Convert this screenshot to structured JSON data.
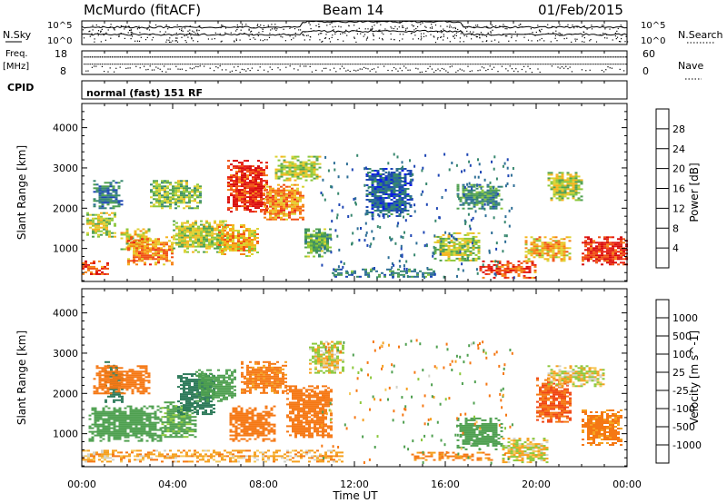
{
  "header": {
    "site": "McMurdo (fitACF)",
    "beam": "Beam 14",
    "date": "01/Feb/2015"
  },
  "nsky_panel": {
    "left_label": "N.Sky",
    "right_label": "N.Search",
    "left_ticks": [
      "10^5",
      "10^0"
    ],
    "right_ticks": [
      "10^5",
      "10^0"
    ]
  },
  "freq_panel": {
    "left_label_1": "Freq.",
    "left_label_2": "[MHz]",
    "right_label": "Nave",
    "left_ticks": [
      "18",
      "8"
    ],
    "right_ticks": [
      "60",
      "0"
    ]
  },
  "cpid": {
    "label": "CPID",
    "mode": "normal (fast) 151 RF"
  },
  "colors": {
    "power": [
      "#0a1ee6",
      "#1e46b4",
      "#2d6e96",
      "#37876e",
      "#4fa050",
      "#8cc83c",
      "#dcd232",
      "#f5b41e",
      "#f58214",
      "#f05014",
      "#e61e14",
      "#d70a0a"
    ],
    "velocity_neg": [
      "#e61414",
      "#f04614",
      "#f57814",
      "#f5a01e",
      "#f5c85a"
    ],
    "velocity_pos": [
      "#d2d2c8",
      "#8cc83c",
      "#4fa050",
      "#2d7a5a",
      "#1e46b4"
    ]
  },
  "chart_data": [
    {
      "type": "heatmap",
      "name": "power",
      "ylabel": "Slant Range [km]",
      "ylim": [
        180,
        4600
      ],
      "xlim_hours": [
        0,
        24
      ],
      "yticks": [
        "1000",
        "2000",
        "3000",
        "4000"
      ],
      "colorbar_label": "Power [dB]",
      "colorbar_ticks": [
        "4",
        "8",
        "12",
        "16",
        "20",
        "24",
        "28"
      ],
      "colorbar_range": [
        0,
        32
      ],
      "regions": [
        {
          "x0": 0.0,
          "x1": 1.2,
          "y0": 350,
          "y1": 700,
          "v": 26
        },
        {
          "x0": 0.2,
          "x1": 1.5,
          "y0": 1300,
          "y1": 1900,
          "v": 16
        },
        {
          "x0": 0.5,
          "x1": 1.8,
          "y0": 2000,
          "y1": 2700,
          "v": 8
        },
        {
          "x0": 1.7,
          "x1": 3.0,
          "y0": 1000,
          "y1": 1500,
          "v": 18
        },
        {
          "x0": 2.0,
          "x1": 4.0,
          "y0": 600,
          "y1": 1300,
          "v": 22
        },
        {
          "x0": 3.0,
          "x1": 5.2,
          "y0": 2000,
          "y1": 2700,
          "v": 14
        },
        {
          "x0": 4.0,
          "x1": 6.4,
          "y0": 900,
          "y1": 1700,
          "v": 16
        },
        {
          "x0": 6.4,
          "x1": 8.1,
          "y0": 1900,
          "y1": 3200,
          "v": 28
        },
        {
          "x0": 6.0,
          "x1": 7.8,
          "y0": 800,
          "y1": 1600,
          "v": 20
        },
        {
          "x0": 8.0,
          "x1": 9.8,
          "y0": 1700,
          "y1": 2600,
          "v": 22
        },
        {
          "x0": 8.5,
          "x1": 10.5,
          "y0": 2700,
          "y1": 3300,
          "v": 16
        },
        {
          "x0": 9.8,
          "x1": 11.0,
          "y0": 800,
          "y1": 1500,
          "v": 12
        },
        {
          "x0": 11.0,
          "x1": 15.5,
          "y0": 300,
          "y1": 500,
          "v": 10
        },
        {
          "x0": 12.5,
          "x1": 14.5,
          "y0": 1800,
          "y1": 3000,
          "v": 6
        },
        {
          "x0": 15.5,
          "x1": 17.5,
          "y0": 700,
          "y1": 1400,
          "v": 16
        },
        {
          "x0": 16.5,
          "x1": 18.5,
          "y0": 2000,
          "y1": 2600,
          "v": 10
        },
        {
          "x0": 17.5,
          "x1": 20.0,
          "y0": 250,
          "y1": 700,
          "v": 26
        },
        {
          "x0": 19.5,
          "x1": 21.5,
          "y0": 700,
          "y1": 1300,
          "v": 20
        },
        {
          "x0": 20.5,
          "x1": 22.0,
          "y0": 2200,
          "y1": 2900,
          "v": 16
        },
        {
          "x0": 22.0,
          "x1": 24.0,
          "y0": 600,
          "y1": 1300,
          "v": 28
        }
      ]
    },
    {
      "type": "heatmap",
      "name": "velocity",
      "ylabel": "Slant Range [km]",
      "xlabel": "Time UT",
      "ylim": [
        180,
        4600
      ],
      "xlim_hours": [
        0,
        24
      ],
      "yticks": [
        "1000",
        "2000",
        "3000",
        "4000"
      ],
      "xticks": [
        "00:00",
        "04:00",
        "08:00",
        "12:00",
        "16:00",
        "20:00",
        "00:00"
      ],
      "colorbar_label": "Velocity [m s^-1]",
      "colorbar_ticks": [
        "1000",
        "500",
        "100",
        "25",
        "-25",
        "-100",
        "-500",
        "-1000"
      ],
      "regions": [
        {
          "x0": 0.3,
          "x1": 3.5,
          "y0": 800,
          "y1": 1700,
          "v": 300
        },
        {
          "x0": 3.5,
          "x1": 5.0,
          "y0": 900,
          "y1": 1800,
          "v": 150
        },
        {
          "x0": 1.0,
          "x1": 1.8,
          "y0": 1800,
          "y1": 2800,
          "v": 800
        },
        {
          "x0": 0.5,
          "x1": 3.0,
          "y0": 2000,
          "y1": 2700,
          "v": -300
        },
        {
          "x0": 4.2,
          "x1": 5.8,
          "y0": 1500,
          "y1": 2500,
          "v": 600
        },
        {
          "x0": 5.0,
          "x1": 6.8,
          "y0": 1800,
          "y1": 2600,
          "v": 200
        },
        {
          "x0": 6.5,
          "x1": 8.5,
          "y0": 800,
          "y1": 1700,
          "v": -300
        },
        {
          "x0": 7.0,
          "x1": 9.0,
          "y0": 2000,
          "y1": 2800,
          "v": -150
        },
        {
          "x0": 9.0,
          "x1": 11.0,
          "y0": 900,
          "y1": 2200,
          "v": -400
        },
        {
          "x0": 10.0,
          "x1": 11.5,
          "y0": 2500,
          "y1": 3300,
          "v": 10
        },
        {
          "x0": 0.0,
          "x1": 11.5,
          "y0": 300,
          "y1": 600,
          "v": -60
        },
        {
          "x0": 14.5,
          "x1": 18.0,
          "y0": 350,
          "y1": 550,
          "v": -120
        },
        {
          "x0": 16.5,
          "x1": 18.5,
          "y0": 600,
          "y1": 1400,
          "v": 300
        },
        {
          "x0": 18.5,
          "x1": 20.5,
          "y0": 300,
          "y1": 900,
          "v": 0
        },
        {
          "x0": 20.0,
          "x1": 21.5,
          "y0": 1300,
          "y1": 2400,
          "v": -500
        },
        {
          "x0": 22.0,
          "x1": 23.7,
          "y0": 700,
          "y1": 1600,
          "v": -150
        },
        {
          "x0": 20.5,
          "x1": 23.0,
          "y0": 2200,
          "y1": 2700,
          "v": 15
        }
      ]
    }
  ]
}
